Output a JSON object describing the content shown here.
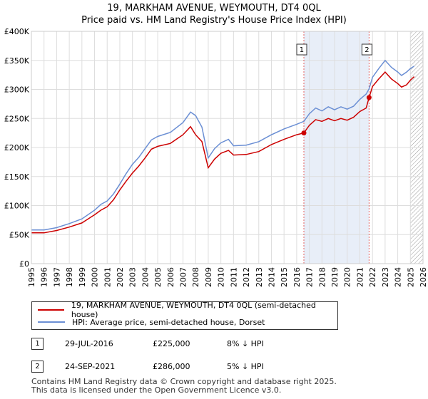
{
  "title_line1": "19, MARKHAM AVENUE, WEYMOUTH, DT4 0QL",
  "title_line2": "Price paid vs. HM Land Registry's House Price Index (HPI)",
  "colors": {
    "property": "#cc0000",
    "hpi": "#6b8fd4",
    "shade": "#e8eef8",
    "marker_line": "#e06060"
  },
  "chart_data": {
    "type": "line",
    "xlim": [
      1995,
      2026
    ],
    "ylim": [
      0,
      400000
    ],
    "x_ticks": [
      "1995",
      "1996",
      "1997",
      "1998",
      "1999",
      "2000",
      "2001",
      "2002",
      "2003",
      "2004",
      "2005",
      "2006",
      "2007",
      "2008",
      "2009",
      "2010",
      "2011",
      "2012",
      "2013",
      "2014",
      "2015",
      "2016",
      "2017",
      "2018",
      "2019",
      "2020",
      "2021",
      "2022",
      "2023",
      "2024",
      "2025",
      "2026"
    ],
    "y_ticks": [
      {
        "value": 0,
        "label": "£0"
      },
      {
        "value": 50000,
        "label": "£50K"
      },
      {
        "value": 100000,
        "label": "£100K"
      },
      {
        "value": 150000,
        "label": "£150K"
      },
      {
        "value": 200000,
        "label": "£200K"
      },
      {
        "value": 250000,
        "label": "£250K"
      },
      {
        "value": 300000,
        "label": "£300K"
      },
      {
        "value": 350000,
        "label": "£350K"
      },
      {
        "value": 400000,
        "label": "£400K"
      }
    ],
    "grid": true,
    "series": [
      {
        "name": "19, MARKHAM AVENUE, WEYMOUTH, DT4 0QL (semi-detached house)",
        "color": "#cc0000",
        "points": [
          [
            1995.0,
            53000
          ],
          [
            1996.0,
            53000
          ],
          [
            1997.0,
            57000
          ],
          [
            1998.0,
            63000
          ],
          [
            1999.0,
            70000
          ],
          [
            2000.0,
            84000
          ],
          [
            2000.5,
            92000
          ],
          [
            2001.0,
            98000
          ],
          [
            2001.5,
            110000
          ],
          [
            2002.0,
            127000
          ],
          [
            2002.5,
            142000
          ],
          [
            2003.0,
            156000
          ],
          [
            2003.5,
            168000
          ],
          [
            2004.0,
            182000
          ],
          [
            2004.5,
            197000
          ],
          [
            2005.0,
            202000
          ],
          [
            2006.0,
            207000
          ],
          [
            2007.0,
            222000
          ],
          [
            2007.6,
            236000
          ],
          [
            2008.0,
            222000
          ],
          [
            2008.5,
            210000
          ],
          [
            2009.0,
            165000
          ],
          [
            2009.5,
            180000
          ],
          [
            2010.0,
            190000
          ],
          [
            2010.6,
            195000
          ],
          [
            2011.0,
            187000
          ],
          [
            2012.0,
            188000
          ],
          [
            2013.0,
            193000
          ],
          [
            2014.0,
            205000
          ],
          [
            2015.0,
            214000
          ],
          [
            2015.5,
            218000
          ],
          [
            2016.0,
            222000
          ],
          [
            2016.57,
            225000
          ],
          [
            2017.0,
            238000
          ],
          [
            2017.5,
            248000
          ],
          [
            2018.0,
            245000
          ],
          [
            2018.5,
            250000
          ],
          [
            2019.0,
            246000
          ],
          [
            2019.5,
            250000
          ],
          [
            2020.0,
            247000
          ],
          [
            2020.5,
            252000
          ],
          [
            2021.0,
            262000
          ],
          [
            2021.5,
            268000
          ],
          [
            2021.73,
            286000
          ],
          [
            2022.0,
            305000
          ],
          [
            2022.5,
            318000
          ],
          [
            2023.0,
            330000
          ],
          [
            2023.5,
            318000
          ],
          [
            2024.0,
            310000
          ],
          [
            2024.3,
            304000
          ],
          [
            2024.7,
            308000
          ],
          [
            2025.0,
            316000
          ],
          [
            2025.3,
            322000
          ]
        ]
      },
      {
        "name": "HPI: Average price, semi-detached house, Dorset",
        "color": "#6b8fd4",
        "points": [
          [
            1995.0,
            58000
          ],
          [
            1996.0,
            58000
          ],
          [
            1997.0,
            62000
          ],
          [
            1998.0,
            69000
          ],
          [
            1999.0,
            77000
          ],
          [
            2000.0,
            92000
          ],
          [
            2000.5,
            102000
          ],
          [
            2001.0,
            108000
          ],
          [
            2001.5,
            120000
          ],
          [
            2002.0,
            137000
          ],
          [
            2002.5,
            155000
          ],
          [
            2003.0,
            171000
          ],
          [
            2003.5,
            183000
          ],
          [
            2004.0,
            198000
          ],
          [
            2004.5,
            213000
          ],
          [
            2005.0,
            219000
          ],
          [
            2006.0,
            226000
          ],
          [
            2007.0,
            243000
          ],
          [
            2007.6,
            261000
          ],
          [
            2008.0,
            255000
          ],
          [
            2008.5,
            235000
          ],
          [
            2009.0,
            182000
          ],
          [
            2009.5,
            198000
          ],
          [
            2010.0,
            208000
          ],
          [
            2010.6,
            214000
          ],
          [
            2011.0,
            203000
          ],
          [
            2012.0,
            204000
          ],
          [
            2013.0,
            210000
          ],
          [
            2014.0,
            222000
          ],
          [
            2015.0,
            232000
          ],
          [
            2015.5,
            236000
          ],
          [
            2016.0,
            240000
          ],
          [
            2016.57,
            245000
          ],
          [
            2017.0,
            258000
          ],
          [
            2017.5,
            268000
          ],
          [
            2018.0,
            263000
          ],
          [
            2018.5,
            270000
          ],
          [
            2019.0,
            265000
          ],
          [
            2019.5,
            270000
          ],
          [
            2020.0,
            266000
          ],
          [
            2020.5,
            271000
          ],
          [
            2021.0,
            283000
          ],
          [
            2021.5,
            292000
          ],
          [
            2021.73,
            301000
          ],
          [
            2022.0,
            321000
          ],
          [
            2022.5,
            336000
          ],
          [
            2023.0,
            350000
          ],
          [
            2023.5,
            338000
          ],
          [
            2024.0,
            330000
          ],
          [
            2024.3,
            324000
          ],
          [
            2024.7,
            330000
          ],
          [
            2025.0,
            336000
          ],
          [
            2025.3,
            340000
          ]
        ]
      }
    ],
    "annotations": [
      {
        "label": "1",
        "x": 2016.57,
        "y": 225000
      },
      {
        "label": "2",
        "x": 2021.73,
        "y": 286000
      }
    ],
    "shaded_ranges": [
      {
        "from": 2016.57,
        "to": 2021.73
      }
    ],
    "hatched_from": 2025.0
  },
  "legend": {
    "property_label": "19, MARKHAM AVENUE, WEYMOUTH, DT4 0QL (semi-detached house)",
    "hpi_label": "HPI: Average price, semi-detached house, Dorset"
  },
  "transactions": [
    {
      "num": "1",
      "date": "29-JUL-2016",
      "price": "£225,000",
      "diff": "8% ↓ HPI"
    },
    {
      "num": "2",
      "date": "24-SEP-2021",
      "price": "£286,000",
      "diff": "5% ↓ HPI"
    }
  ],
  "footer_line1": "Contains HM Land Registry data © Crown copyright and database right 2025.",
  "footer_line2": "This data is licensed under the Open Government Licence v3.0."
}
